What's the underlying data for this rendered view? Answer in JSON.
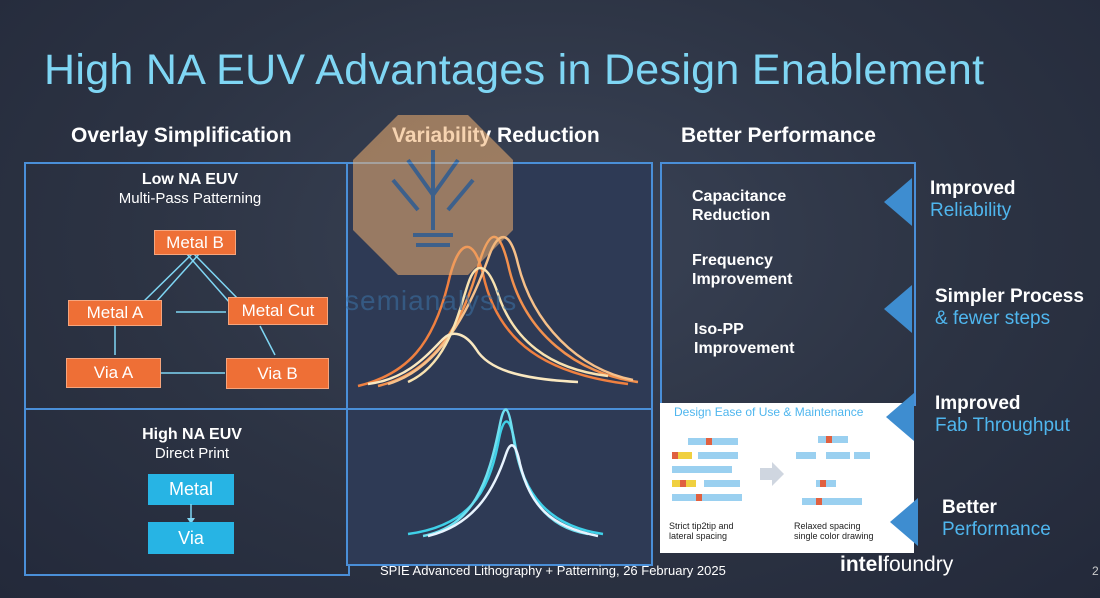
{
  "slide": {
    "title": "High NA EUV Advantages in Design Enablement",
    "columns": {
      "overlay": "Overlay Simplification",
      "variability": "Variability Reduction",
      "performance": "Better Performance"
    },
    "low_na": {
      "heading": "Low NA EUV",
      "sub": "Multi-Pass Patterning"
    },
    "high_na": {
      "heading": "High NA EUV",
      "sub": "Direct Print"
    },
    "low_boxes": {
      "metal_b": "Metal  B",
      "metal_a": "Metal A",
      "metal_cut": "Metal Cut",
      "via_a": "Via A",
      "via_b": "Via B"
    },
    "high_boxes": {
      "metal": "Metal",
      "via": "Via"
    },
    "perf_items": [
      {
        "l1": "Capacitance",
        "l2": "Reduction"
      },
      {
        "l1": "Frequency",
        "l2": "Improvement"
      },
      {
        "l1": "Iso-PP",
        "l2": "Improvement"
      }
    ],
    "design_label": "Design Ease of Use & Maintenance",
    "strict": {
      "l1": "Strict tip2tip and",
      "l2": "lateral spacing"
    },
    "relaxed": {
      "l1": "Relaxed spacing",
      "l2": "single color drawing"
    },
    "advantages": [
      {
        "l1": "Improved",
        "l2": "Reliability"
      },
      {
        "l1": "Simpler Process",
        "l2": "& fewer steps"
      },
      {
        "l1": "Improved",
        "l2": "Fab Throughput"
      },
      {
        "l1": "Better",
        "l2": "Performance"
      }
    ],
    "footer": "SPIE Advanced Lithography + Patterning, 26 February 2025",
    "logo": {
      "intel": "intel",
      "foundry": "foundry"
    },
    "page_number": "2",
    "watermark": "semianalysis"
  },
  "colors": {
    "accent": "#7fd6f4",
    "orange": "#ee6f36",
    "cyan": "#27b4e4",
    "border": "#4a8fd8"
  }
}
